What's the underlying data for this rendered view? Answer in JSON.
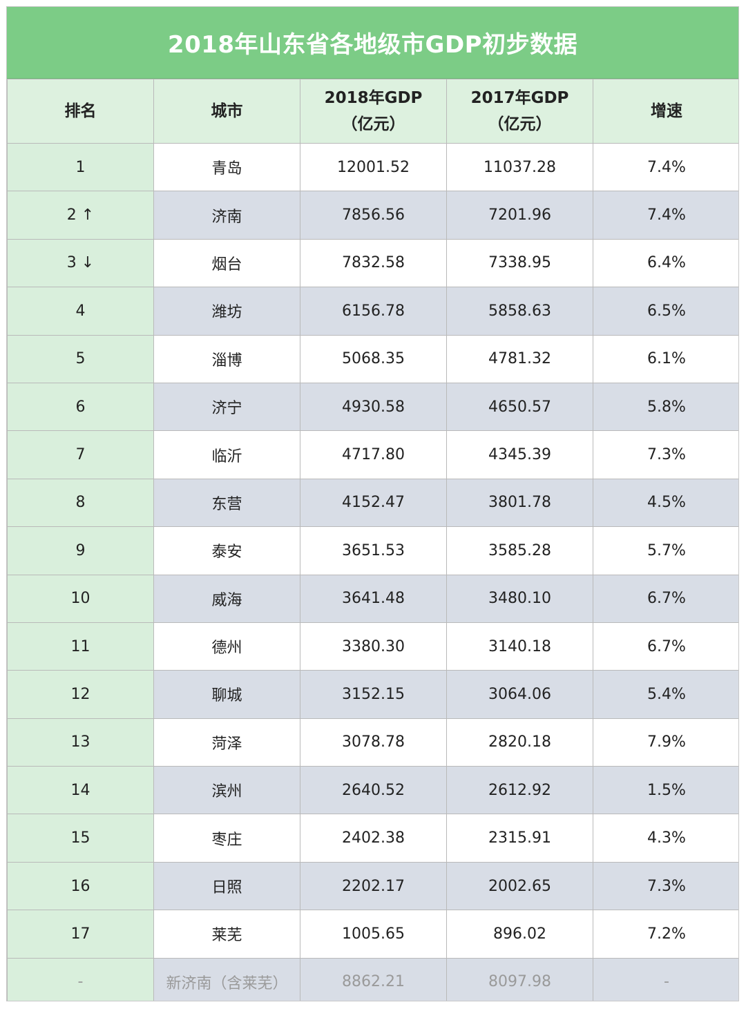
{
  "title": "2018年山东省各地级市GDP初步数据",
  "headers": {
    "rank": "排名",
    "city": "城市",
    "gdp2018_line1": "2018年GDP",
    "gdp2018_line2": "（亿元）",
    "gdp2017_line1": "2017年GDP",
    "gdp2017_line2": "（亿元）",
    "growth": "增速"
  },
  "rows": [
    {
      "rank": "1",
      "city": "青岛",
      "gdp2018": "12001.52",
      "gdp2017": "11037.28",
      "growth": "7.4%"
    },
    {
      "rank": "2 ↑",
      "city": "济南",
      "gdp2018": "7856.56",
      "gdp2017": "7201.96",
      "growth": "7.4%"
    },
    {
      "rank": "3 ↓",
      "city": "烟台",
      "gdp2018": "7832.58",
      "gdp2017": "7338.95",
      "growth": "6.4%"
    },
    {
      "rank": "4",
      "city": "潍坊",
      "gdp2018": "6156.78",
      "gdp2017": "5858.63",
      "growth": "6.5%"
    },
    {
      "rank": "5",
      "city": "淄博",
      "gdp2018": "5068.35",
      "gdp2017": "4781.32",
      "growth": "6.1%"
    },
    {
      "rank": "6",
      "city": "济宁",
      "gdp2018": "4930.58",
      "gdp2017": "4650.57",
      "growth": "5.8%"
    },
    {
      "rank": "7",
      "city": "临沂",
      "gdp2018": "4717.80",
      "gdp2017": "4345.39",
      "growth": "7.3%"
    },
    {
      "rank": "8",
      "city": "东营",
      "gdp2018": "4152.47",
      "gdp2017": "3801.78",
      "growth": "4.5%"
    },
    {
      "rank": "9",
      "city": "泰安",
      "gdp2018": "3651.53",
      "gdp2017": "3585.28",
      "growth": "5.7%"
    },
    {
      "rank": "10",
      "city": "威海",
      "gdp2018": "3641.48",
      "gdp2017": "3480.10",
      "growth": "6.7%"
    },
    {
      "rank": "11",
      "city": "德州",
      "gdp2018": "3380.30",
      "gdp2017": "3140.18",
      "growth": "6.7%"
    },
    {
      "rank": "12",
      "city": "聊城",
      "gdp2018": "3152.15",
      "gdp2017": "3064.06",
      "growth": "5.4%"
    },
    {
      "rank": "13",
      "city": "菏泽",
      "gdp2018": "3078.78",
      "gdp2017": "2820.18",
      "growth": "7.9%"
    },
    {
      "rank": "14",
      "city": "滨州",
      "gdp2018": "2640.52",
      "gdp2017": "2612.92",
      "growth": "1.5%"
    },
    {
      "rank": "15",
      "city": "枣庄",
      "gdp2018": "2402.38",
      "gdp2017": "2315.91",
      "growth": "4.3%"
    },
    {
      "rank": "16",
      "city": "日照",
      "gdp2018": "2202.17",
      "gdp2017": "2002.65",
      "growth": "7.3%"
    },
    {
      "rank": "17",
      "city": "莱芜",
      "gdp2018": "1005.65",
      "gdp2017": "896.02",
      "growth": "7.2%"
    },
    {
      "rank": "-",
      "city": "新济南（含莱芜）",
      "gdp2018": "8862.21",
      "gdp2017": "8097.98",
      "growth": "-"
    }
  ],
  "colors": {
    "title_bg": "#7ccc86",
    "header_bg": "#ddf1df",
    "rank_col_bg": "#d9efdc",
    "stripe_bg": "#d8dde6",
    "summary_text": "#9a9a9a"
  }
}
